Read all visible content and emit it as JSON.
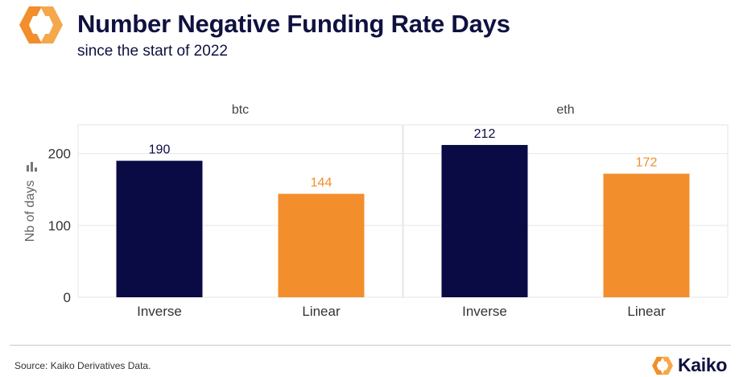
{
  "header": {
    "title": "Number Negative Funding Rate Days",
    "subtitle": "since the start of 2022"
  },
  "footer": {
    "source": "Source: Kaiko Derivatives Data.",
    "brand": "Kaiko"
  },
  "colors": {
    "inverse": "#0a0a45",
    "linear": "#f28e2b",
    "title": "#0f1140",
    "grid": "#e6e6e6"
  },
  "chart_data": {
    "type": "bar",
    "ylabel": "Nb of days",
    "ylim": [
      0,
      240
    ],
    "yticks": [
      0,
      100,
      200
    ],
    "grid": true,
    "panels": [
      {
        "facet": "btc",
        "categories": [
          "Inverse",
          "Linear"
        ],
        "values": [
          190,
          144
        ]
      },
      {
        "facet": "eth",
        "categories": [
          "Inverse",
          "Linear"
        ],
        "values": [
          212,
          172
        ]
      }
    ]
  }
}
